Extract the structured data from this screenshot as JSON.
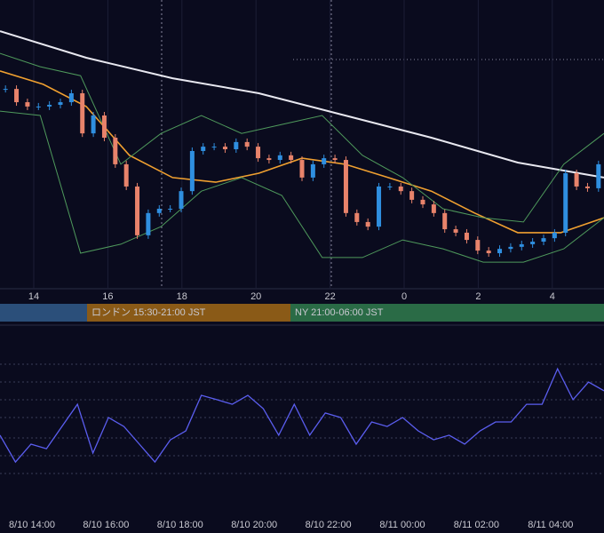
{
  "chart_data": {
    "type": "candlestick",
    "xticks": [
      "14",
      "16",
      "18",
      "20",
      "22",
      "0",
      "2",
      "4"
    ],
    "sessions": [
      {
        "label": "ロンドン 15:30-21:00 JST",
        "color": "#8a5a17"
      },
      {
        "label": "NY 21:00-06:00 JST",
        "color": "#2a6b46"
      }
    ],
    "ylim": [
      0,
      100
    ],
    "up_color": "#2f8fe0",
    "down_color": "#e8836b",
    "close": [
      69.2,
      64.6,
      63.1,
      63.1,
      63.7,
      64.6,
      67.7,
      53.8,
      60,
      52.3,
      43.1,
      35.4,
      18.5,
      26.2,
      27.7,
      27.7,
      33.8,
      47.7,
      49.2,
      49.2,
      48.3,
      50.8,
      49.2,
      45.2,
      44.6,
      46.2,
      44.6,
      38.5,
      43.1,
      45.2,
      44.6,
      26.2,
      23.1,
      21.5,
      35.4,
      35.4,
      33.8,
      30.8,
      29.2,
      26.2,
      20.6,
      19.4,
      16.9,
      13.2,
      12.3,
      13.8,
      14.5,
      15.4,
      16.3,
      17.5,
      19.4,
      40,
      35.4,
      34.8,
      43.1
    ],
    "lines": [
      {
        "color": "#e8e8f0",
        "values": [
          89.2,
          80,
          72.9,
          67.7,
          60,
          52.3,
          43.7,
          38.5
        ]
      },
      {
        "color": "#f0a030",
        "values": [
          75.4,
          70.8,
          63.1,
          46.2,
          38.5,
          36.9,
          40,
          45.2,
          43.1,
          38.5,
          33.8,
          26.2,
          19.4,
          19.4,
          24.6
        ]
      },
      {
        "color": "#4f9a5c",
        "values": [
          81.5,
          76.9,
          73.8,
          43.1,
          53.8,
          60,
          53.8,
          56.9,
          60,
          46.2,
          38.5,
          27.7,
          24.6,
          23.1,
          43.1,
          53.8
        ]
      },
      {
        "color": "#4f9a5c",
        "values": [
          61.5,
          60,
          12.3,
          15.4,
          21.5,
          33.8,
          38.5,
          32.3,
          10.8,
          10.8,
          16.9,
          13.8,
          9.2,
          9.2,
          13.8,
          24.6
        ]
      }
    ],
    "oscillator": {
      "color": "#5b5ef0",
      "ylim": [
        0,
        100
      ],
      "values": [
        41.5,
        26.8,
        36.6,
        34.1,
        46.3,
        58.5,
        31.7,
        51.2,
        46.3,
        36.6,
        26.8,
        39,
        43.9,
        63.4,
        61,
        58.5,
        63.4,
        56.1,
        41.5,
        58.5,
        41.5,
        53.7,
        51.2,
        36.6,
        48.8,
        46.3,
        51.2,
        43.9,
        39,
        41.5,
        36.6,
        43.9,
        48.8,
        48.8,
        58.5,
        58.5,
        78,
        61,
        70.7,
        65.9
      ]
    },
    "time_labels": [
      "8/10 14:00",
      "8/10 16:00",
      "8/10 18:00",
      "8/10 20:00",
      "8/10 22:00",
      "8/11 00:00",
      "8/11 02:00",
      "8/11 04:00"
    ]
  }
}
